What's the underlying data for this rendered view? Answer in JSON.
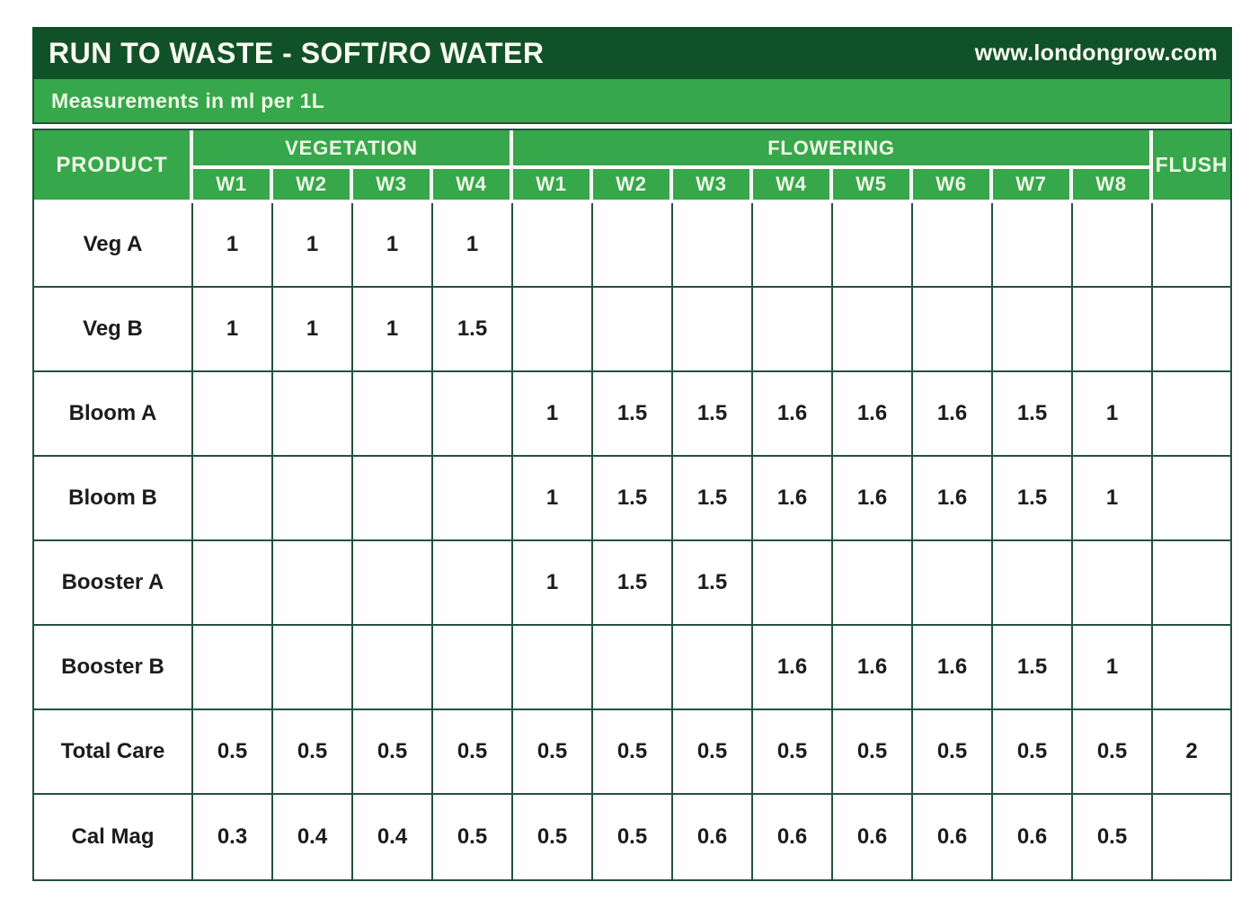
{
  "title_bar": {
    "title": "RUN TO WASTE - SOFT/RO WATER",
    "website": "www.londongrow.com"
  },
  "subtitle": "Measurements in ml per 1L",
  "chart_data": {
    "type": "table",
    "title": "RUN TO WASTE - SOFT/RO WATER",
    "units": "ml per 1L",
    "product_header": "PRODUCT",
    "flush_header": "FLUSH",
    "groups": [
      {
        "label": "VEGETATION",
        "weeks": [
          "W1",
          "W2",
          "W3",
          "W4"
        ]
      },
      {
        "label": "FLOWERING",
        "weeks": [
          "W1",
          "W2",
          "W3",
          "W4",
          "W5",
          "W6",
          "W7",
          "W8"
        ]
      }
    ],
    "rows": [
      {
        "product": "Veg A",
        "vegetation": [
          "1",
          "1",
          "1",
          "1"
        ],
        "flowering": [
          "",
          "",
          "",
          "",
          "",
          "",
          "",
          ""
        ],
        "flush": ""
      },
      {
        "product": "Veg B",
        "vegetation": [
          "1",
          "1",
          "1",
          "1.5"
        ],
        "flowering": [
          "",
          "",
          "",
          "",
          "",
          "",
          "",
          ""
        ],
        "flush": ""
      },
      {
        "product": "Bloom A",
        "vegetation": [
          "",
          "",
          "",
          ""
        ],
        "flowering": [
          "1",
          "1.5",
          "1.5",
          "1.6",
          "1.6",
          "1.6",
          "1.5",
          "1"
        ],
        "flush": ""
      },
      {
        "product": "Bloom B",
        "vegetation": [
          "",
          "",
          "",
          ""
        ],
        "flowering": [
          "1",
          "1.5",
          "1.5",
          "1.6",
          "1.6",
          "1.6",
          "1.5",
          "1"
        ],
        "flush": ""
      },
      {
        "product": "Booster A",
        "vegetation": [
          "",
          "",
          "",
          ""
        ],
        "flowering": [
          "1",
          "1.5",
          "1.5",
          "",
          "",
          "",
          "",
          ""
        ],
        "flush": ""
      },
      {
        "product": "Booster B",
        "vegetation": [
          "",
          "",
          "",
          ""
        ],
        "flowering": [
          "",
          "",
          "",
          "1.6",
          "1.6",
          "1.6",
          "1.5",
          "1"
        ],
        "flush": ""
      },
      {
        "product": "Total Care",
        "vegetation": [
          "0.5",
          "0.5",
          "0.5",
          "0.5"
        ],
        "flowering": [
          "0.5",
          "0.5",
          "0.5",
          "0.5",
          "0.5",
          "0.5",
          "0.5",
          "0.5"
        ],
        "flush": "2"
      },
      {
        "product": "Cal Mag",
        "vegetation": [
          "0.3",
          "0.4",
          "0.4",
          "0.5"
        ],
        "flowering": [
          "0.5",
          "0.5",
          "0.6",
          "0.6",
          "0.6",
          "0.6",
          "0.6",
          "0.5"
        ],
        "flush": ""
      }
    ]
  },
  "colors": {
    "dark_green": "#115129",
    "bright_green": "#36a74a",
    "border_green": "#24523c",
    "header_text": "#eef7e7",
    "cell_text": "#1c1c1c"
  }
}
